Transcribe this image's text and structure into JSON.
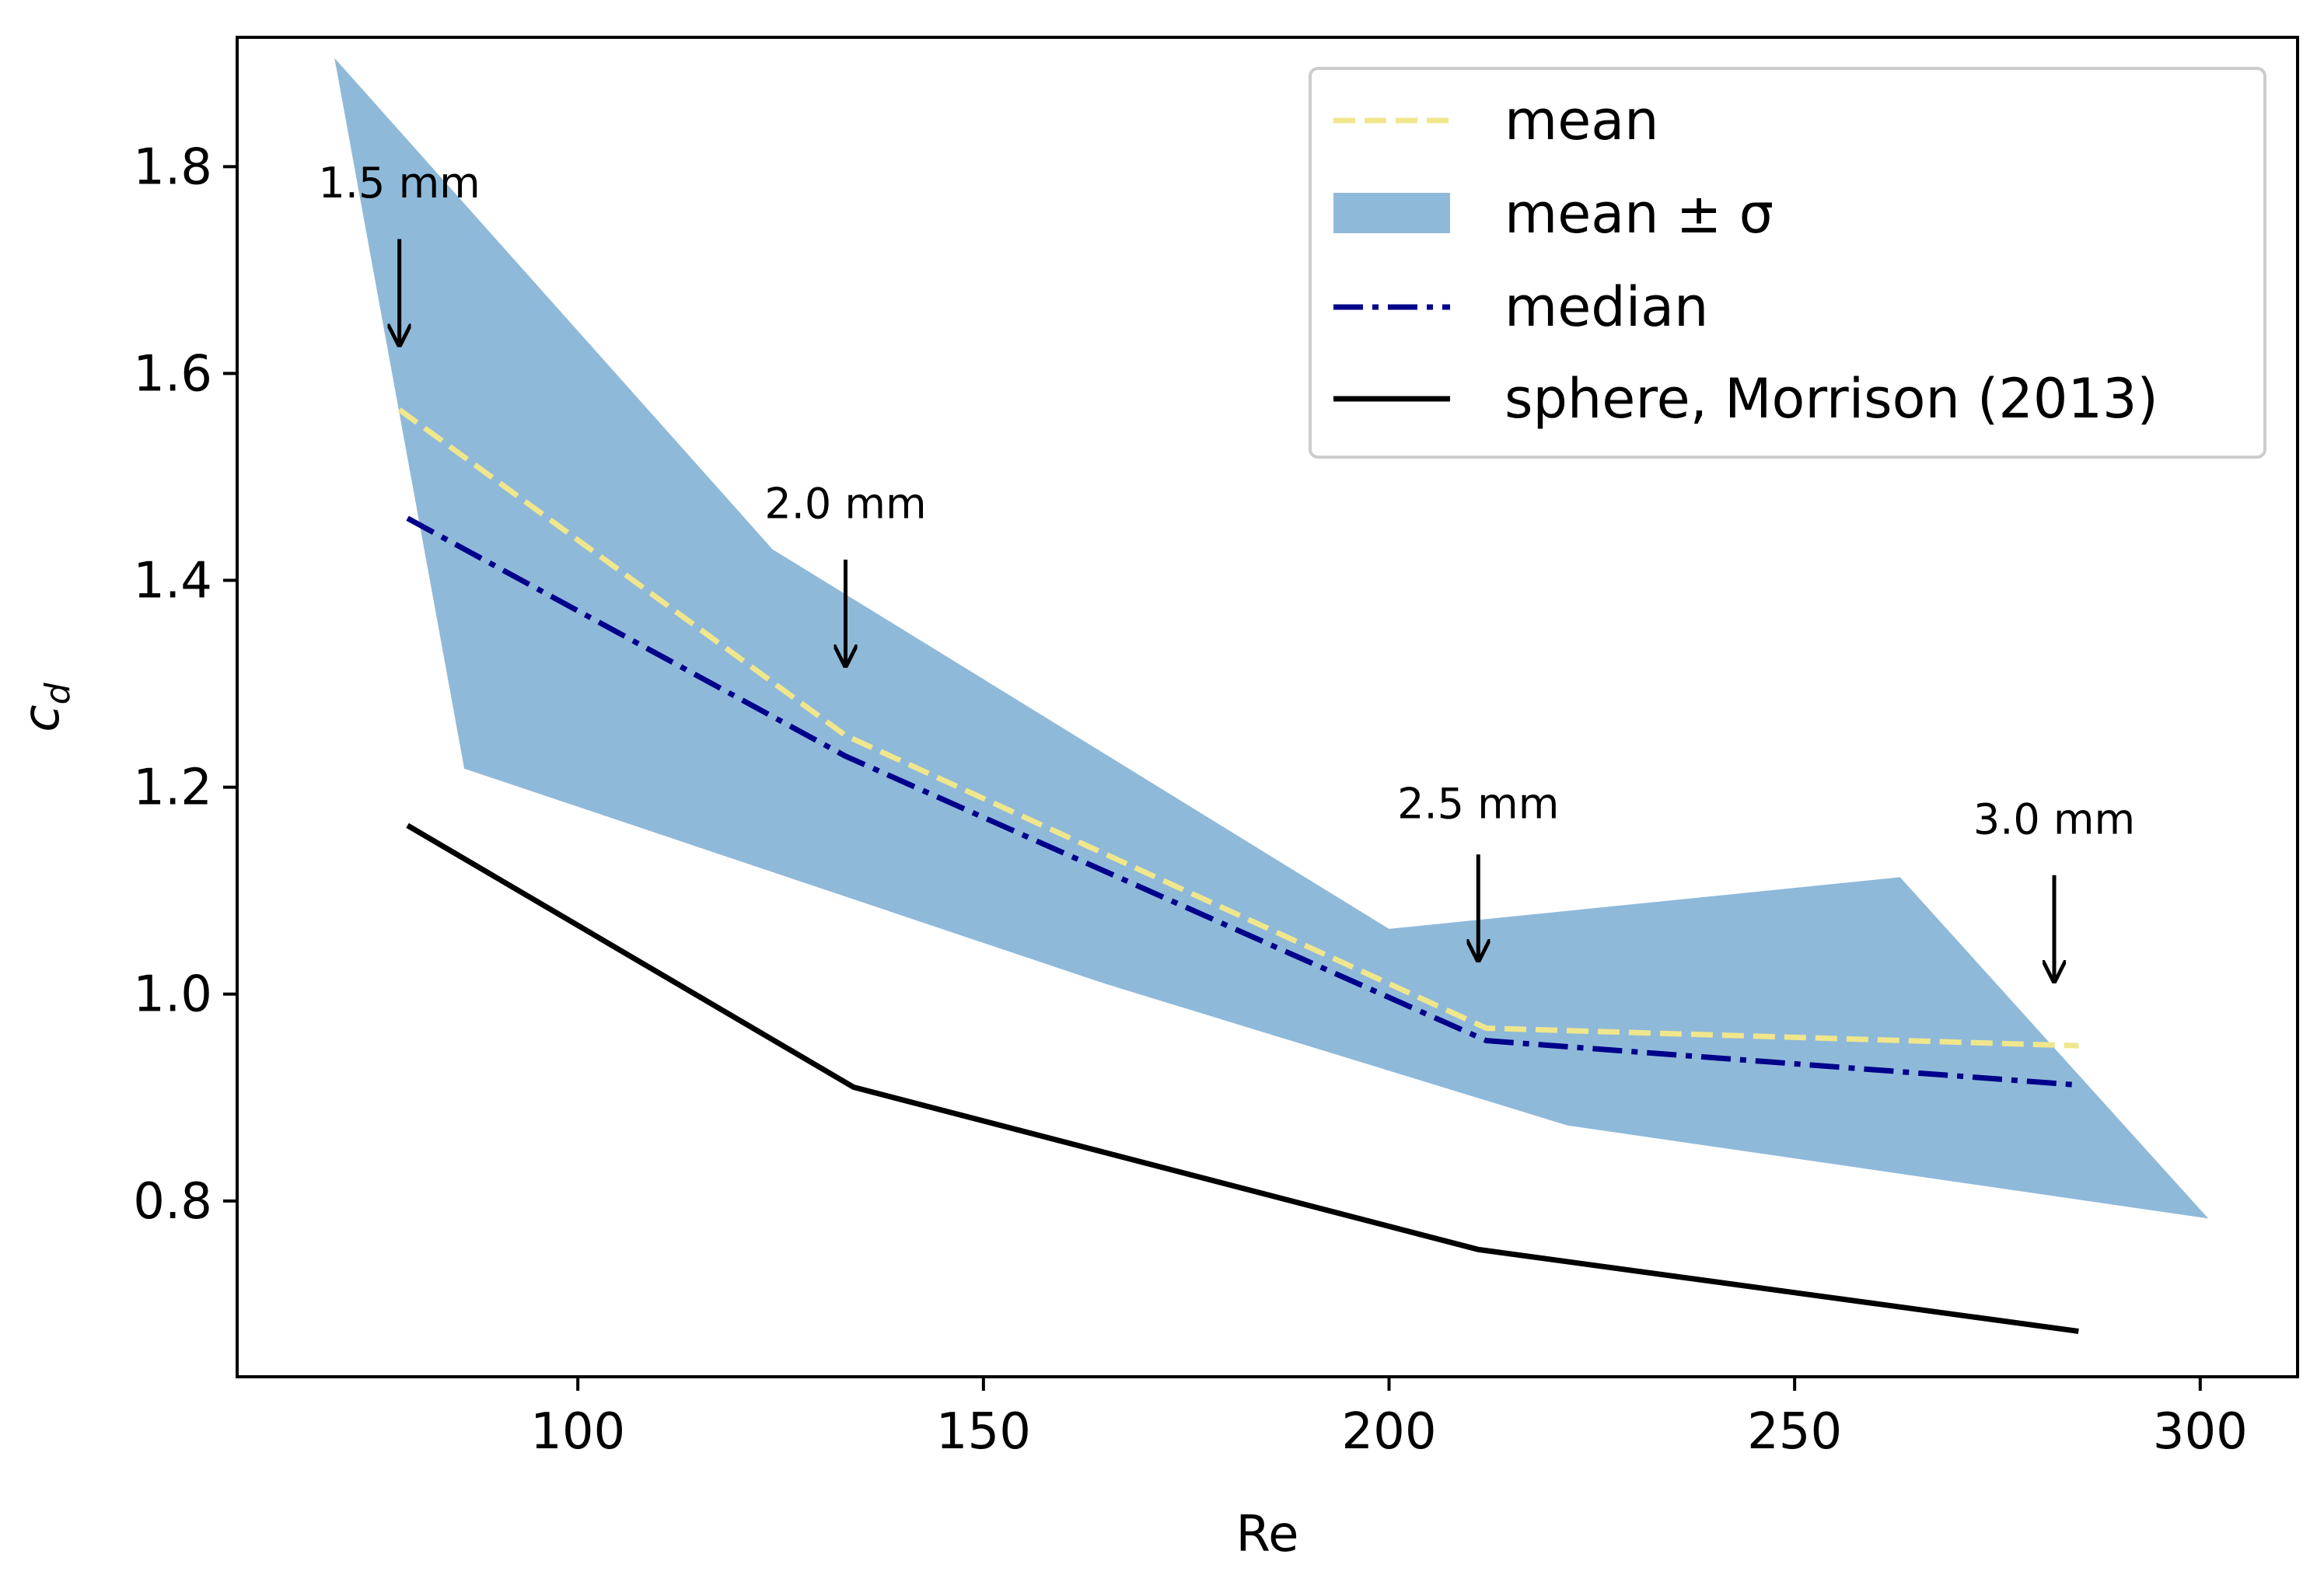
{
  "chart_data": {
    "type": "line",
    "title": "",
    "xlabel": "Re",
    "ylabel_base": "c",
    "ylabel_sub": "d",
    "xlim": [
      58,
      312
    ],
    "ylim": [
      0.63,
      1.925
    ],
    "xticks": [
      100,
      150,
      200,
      250,
      300
    ],
    "xtick_labels": [
      "100",
      "150",
      "200",
      "250",
      "300"
    ],
    "yticks": [
      0.8,
      1.0,
      1.2,
      1.4,
      1.6,
      1.8
    ],
    "ytick_labels": [
      "0.8",
      "1.0",
      "1.2",
      "1.4",
      "1.6",
      "1.8"
    ],
    "grid": false,
    "legend_position": "upper-right",
    "colors": {
      "mean": "#f0e68c",
      "band": "#8fb9d9",
      "median": "#00008b",
      "sphere": "#000000"
    },
    "series": [
      {
        "name": "mean",
        "style": "dashed",
        "points": [
          [
            78,
            1.565
          ],
          [
            133,
            1.25
          ],
          [
            212,
            0.967
          ],
          [
            285,
            0.95
          ]
        ]
      },
      {
        "name": "mean ± σ",
        "style": "band",
        "upper": [
          [
            70,
            1.905
          ],
          [
            124,
            1.43
          ],
          [
            200,
            1.063
          ],
          [
            263,
            1.113
          ],
          [
            301,
            0.783
          ]
        ],
        "lower": [
          [
            301,
            0.783
          ],
          [
            222,
            0.873
          ],
          [
            165,
            1.01
          ],
          [
            86,
            1.218
          ],
          [
            70,
            1.905
          ]
        ]
      },
      {
        "name": "median",
        "style": "dashdot",
        "points": [
          [
            79,
            1.46
          ],
          [
            133,
            1.23
          ],
          [
            212,
            0.955
          ],
          [
            285,
            0.912
          ]
        ]
      },
      {
        "name": "sphere, Morrison (2013)",
        "style": "solid",
        "points": [
          [
            79,
            1.163
          ],
          [
            134,
            0.91
          ],
          [
            211,
            0.753
          ],
          [
            285,
            0.674
          ]
        ]
      }
    ],
    "legend": [
      {
        "label": "mean",
        "series": "mean"
      },
      {
        "label": "mean ± σ",
        "series": "band"
      },
      {
        "label": "median",
        "series": "median"
      },
      {
        "label": "sphere, Morrison (2013)",
        "series": "sphere"
      }
    ],
    "annotations": [
      {
        "text": "1.5 mm",
        "x": 78,
        "y_text": 1.77,
        "y_tail": 1.73,
        "y_head": 1.63
      },
      {
        "text": "2.0 mm",
        "x": 133,
        "y_text": 1.46,
        "y_tail": 1.42,
        "y_head": 1.32
      },
      {
        "text": "2.5 mm",
        "x": 211,
        "y_text": 1.17,
        "y_tail": 1.135,
        "y_head": 1.035
      },
      {
        "text": "3.0 mm",
        "x": 282,
        "y_text": 1.155,
        "y_tail": 1.115,
        "y_head": 1.015
      }
    ]
  }
}
